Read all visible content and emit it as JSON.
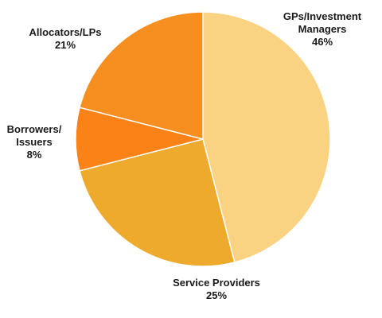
{
  "chart_data": {
    "type": "pie",
    "slices": [
      {
        "label_lines": [
          "GPs/Investment",
          "Managers"
        ],
        "pct_text": "46%",
        "value": 46,
        "color": "#FAD382"
      },
      {
        "label_lines": [
          "Service Providers"
        ],
        "pct_text": "25%",
        "value": 25,
        "color": "#EEAA2D"
      },
      {
        "label_lines": [
          "Borrowers/",
          "Issuers"
        ],
        "pct_text": "8%",
        "value": 8,
        "color": "#FB8216"
      },
      {
        "label_lines": [
          "Allocators/LPs"
        ],
        "pct_text": "21%",
        "value": 21,
        "color": "#F78F20"
      }
    ]
  }
}
